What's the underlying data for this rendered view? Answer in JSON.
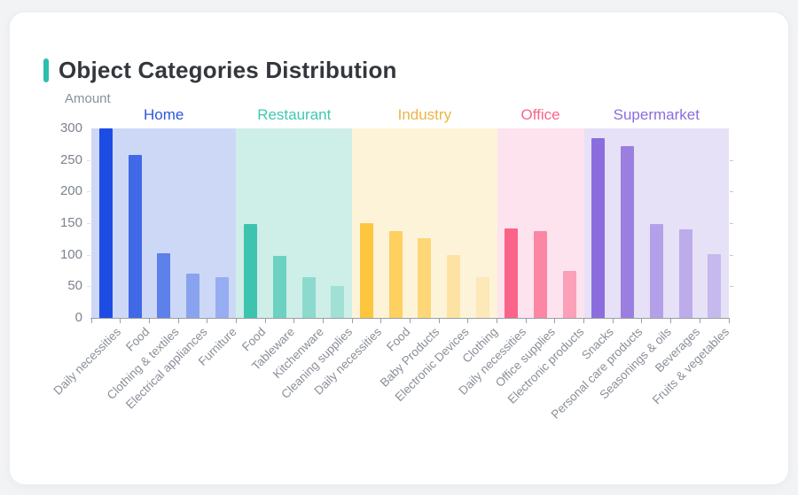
{
  "page": {
    "background_color": "#f2f3f5",
    "card_color": "#ffffff"
  },
  "header": {
    "title": "Object Categories Distribution",
    "accent_color": "#2dbfae"
  },
  "axis": {
    "line_color": "#9aa0a6",
    "tick_label_color": "#7d838d",
    "x_label_color": "#8a8f99"
  },
  "chart_data": {
    "type": "bar",
    "title": "Object Categories Distribution",
    "ylabel": "Amount",
    "xlabel": "",
    "ylim": [
      0,
      300
    ],
    "yticks": [
      0,
      50,
      100,
      150,
      200,
      250,
      300
    ],
    "grid": false,
    "legend_position": "group headers above bands",
    "groups": [
      {
        "name": "Home",
        "label_color": "#2e55e0",
        "bar_color": "#1d4ce4",
        "band_color": "#cdd8f6",
        "bars": [
          {
            "category": "Daily necessities",
            "value": 300,
            "opacity": 1
          },
          {
            "category": "Food",
            "value": 258,
            "opacity": 0.8
          },
          {
            "category": "Clothing & textiles",
            "value": 103,
            "opacity": 0.63
          },
          {
            "category": "Electrical appliances",
            "value": 70,
            "opacity": 0.38
          },
          {
            "category": "Furniture",
            "value": 64,
            "opacity": 0.31
          }
        ]
      },
      {
        "name": "Restaurant",
        "label_color": "#3fc9b0",
        "bar_color": "#3dc3ae",
        "band_color": "#ceeee8",
        "bars": [
          {
            "category": "Food",
            "value": 148,
            "opacity": 1
          },
          {
            "category": "Tableware",
            "value": 98,
            "opacity": 0.68
          },
          {
            "category": "Kitchenware",
            "value": 65,
            "opacity": 0.46
          },
          {
            "category": "Cleaning supplies",
            "value": 51,
            "opacity": 0.32
          }
        ]
      },
      {
        "name": "Industry",
        "label_color": "#ecb445",
        "bar_color": "#fdc63e",
        "band_color": "#fdf3d9",
        "bars": [
          {
            "category": "Daily necessities",
            "value": 150,
            "opacity": 1
          },
          {
            "category": "Food",
            "value": 138,
            "opacity": 0.79
          },
          {
            "category": "Baby Products",
            "value": 126,
            "opacity": 0.63
          },
          {
            "category": "Electronic Devices",
            "value": 100,
            "opacity": 0.35
          },
          {
            "category": "Clothing",
            "value": 64,
            "opacity": 0.22
          }
        ]
      },
      {
        "name": "Office",
        "label_color": "#fa6488",
        "bar_color": "#fa6488",
        "band_color": "#fde3ee",
        "bars": [
          {
            "category": "Daily necessities",
            "value": 142,
            "opacity": 1
          },
          {
            "category": "Office supplies",
            "value": 138,
            "opacity": 0.72
          },
          {
            "category": "Electronic products",
            "value": 75,
            "opacity": 0.53
          }
        ]
      },
      {
        "name": "Supermarket",
        "label_color": "#8b6ddd",
        "bar_color": "#8b6ddd",
        "band_color": "#e6e1f6",
        "bars": [
          {
            "category": "Snacks",
            "value": 285,
            "opacity": 1
          },
          {
            "category": "Personal care products",
            "value": 272,
            "opacity": 0.84
          },
          {
            "category": "Seasonings & oils",
            "value": 148,
            "opacity": 0.56
          },
          {
            "category": "Beverages",
            "value": 140,
            "opacity": 0.46
          },
          {
            "category": "Fruits & vegetables",
            "value": 101,
            "opacity": 0.34
          }
        ]
      }
    ]
  }
}
